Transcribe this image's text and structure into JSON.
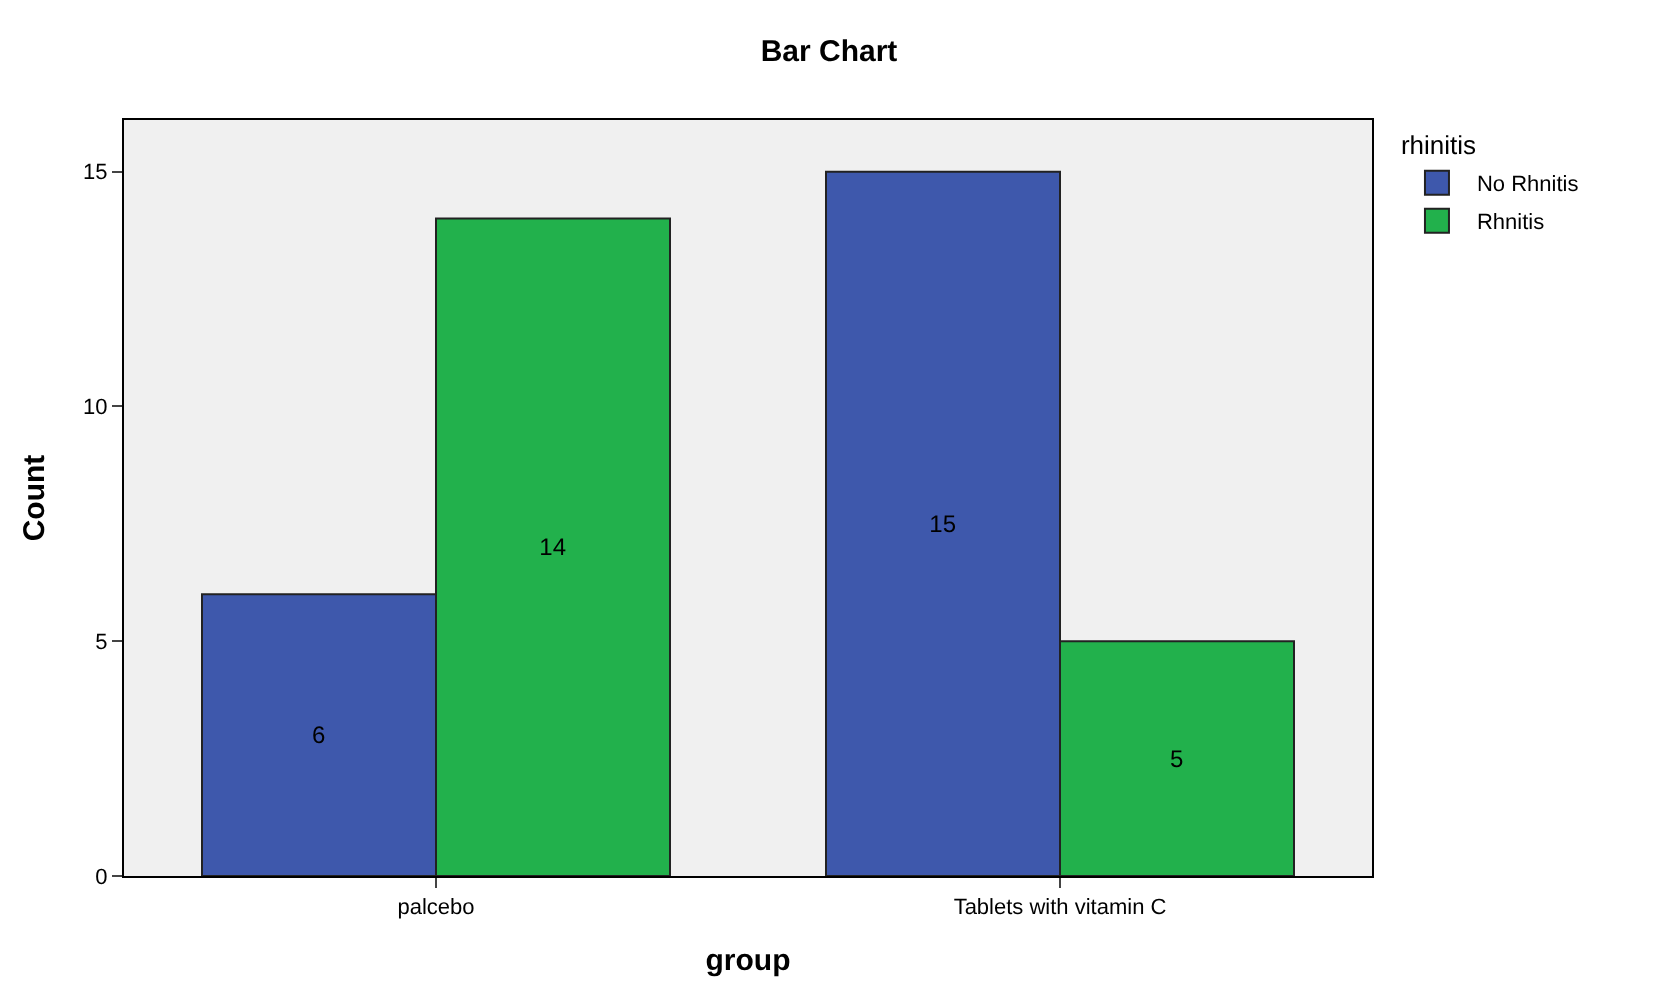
{
  "chart_data": {
    "type": "bar",
    "title": "Bar Chart",
    "xlabel": "group",
    "ylabel": "Count",
    "legend_title": "rhinitis",
    "categories": [
      "palcebo",
      "Tablets with vitamin C"
    ],
    "series": [
      {
        "name": "No Rhnitis",
        "color": "#3e58ac",
        "values": [
          6,
          15
        ]
      },
      {
        "name": "Rhnitis",
        "color": "#22b14c",
        "values": [
          14,
          5
        ]
      }
    ],
    "ylim": [
      0,
      16.1
    ],
    "yticks": [
      0,
      5,
      10,
      15
    ],
    "data_labels": true,
    "grid": false,
    "legend": "top right"
  }
}
